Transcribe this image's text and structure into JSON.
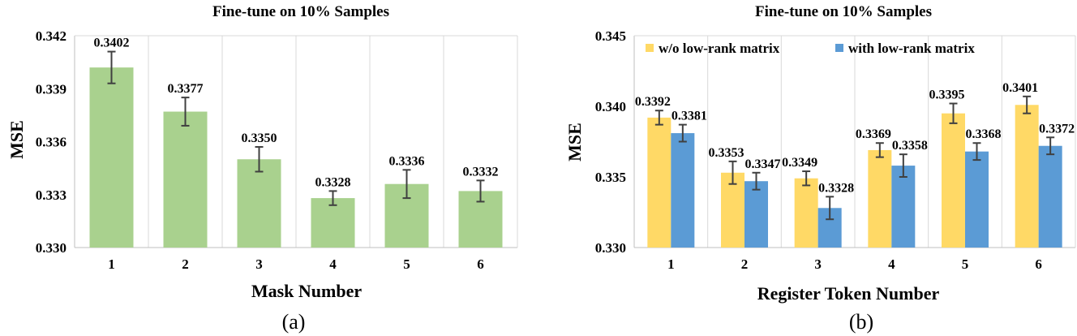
{
  "chart_data": [
    {
      "type": "bar",
      "title": "Fine-tune on 10% Samples",
      "xlabel": "Mask Number",
      "ylabel": "MSE",
      "caption": "(a)",
      "categories": [
        "1",
        "2",
        "3",
        "4",
        "5",
        "6"
      ],
      "ylim": [
        0.33,
        0.342
      ],
      "yticks": [
        "0.330",
        "0.333",
        "0.336",
        "0.339",
        "0.342"
      ],
      "grid": "vertical",
      "series": [
        {
          "values": [
            0.3402,
            0.3377,
            0.335,
            0.3328,
            0.3336,
            0.3332
          ],
          "labels": [
            "0.3402",
            "0.3377",
            "0.3350",
            "0.3328",
            "0.3336",
            "0.3332"
          ],
          "errors": [
            0.0009,
            0.0008,
            0.0007,
            0.0004,
            0.0008,
            0.0006
          ],
          "color": "#a9d18e"
        }
      ]
    },
    {
      "type": "bar",
      "title": "Fine-tune on 10% Samples",
      "xlabel": "Register Token Number",
      "ylabel": "MSE",
      "caption": "(b)",
      "categories": [
        "1",
        "2",
        "3",
        "4",
        "5",
        "6"
      ],
      "ylim": [
        0.33,
        0.345
      ],
      "yticks": [
        "0.330",
        "0.335",
        "0.340",
        "0.345"
      ],
      "grid": "vertical",
      "legend": "top",
      "series": [
        {
          "name": "w/o  low-rank matrix",
          "values": [
            0.3392,
            0.3353,
            0.3349,
            0.3369,
            0.3395,
            0.3401
          ],
          "labels": [
            "0.3392",
            "0.3353",
            "0.3349",
            "0.3369",
            "0.3395",
            "0.3401"
          ],
          "errors": [
            0.0005,
            0.0008,
            0.0005,
            0.0005,
            0.0007,
            0.0006
          ],
          "color": "#ffd966"
        },
        {
          "name": "with  low-rank matrix",
          "values": [
            0.3381,
            0.3347,
            0.3328,
            0.3358,
            0.3368,
            0.3372
          ],
          "labels": [
            "0.3381",
            "0.3347",
            "0.3328",
            "0.3358",
            "0.3368",
            "0.3372"
          ],
          "errors": [
            0.0006,
            0.0006,
            0.0008,
            0.0008,
            0.0006,
            0.0006
          ],
          "color": "#5b9bd5"
        }
      ]
    }
  ]
}
